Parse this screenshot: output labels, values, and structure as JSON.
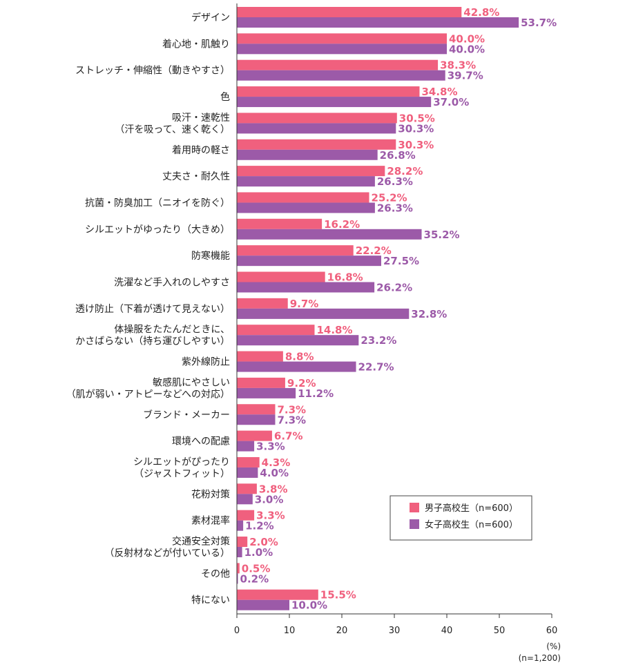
{
  "chart_data": {
    "type": "bar",
    "orientation": "horizontal",
    "categories": [
      [
        "デザイン"
      ],
      [
        "着心地・肌触り"
      ],
      [
        "ストレッチ・伸縮性（動きやすさ）"
      ],
      [
        "色"
      ],
      [
        "吸汗・速乾性",
        "（汗を吸って、速く乾く）"
      ],
      [
        "着用時の軽さ"
      ],
      [
        "丈夫さ・耐久性"
      ],
      [
        "抗菌・防臭加工（ニオイを防ぐ）"
      ],
      [
        "シルエットがゆったり（大きめ）"
      ],
      [
        "防寒機能"
      ],
      [
        "洗濯など手入れのしやすさ"
      ],
      [
        "透け防止（下着が透けて見えない）"
      ],
      [
        "体操服をたたんだときに、",
        "かさばらない（持ち運びしやすい）"
      ],
      [
        "紫外線防止"
      ],
      [
        "敏感肌にやさしい",
        "（肌が弱い・アトピーなどへの対応）"
      ],
      [
        "ブランド・メーカー"
      ],
      [
        "環境への配慮"
      ],
      [
        "シルエットがぴったり",
        "（ジャストフィット）"
      ],
      [
        "花粉対策"
      ],
      [
        "素材混率"
      ],
      [
        "交通安全対策",
        "（反射材などが付いている）"
      ],
      [
        "その他"
      ],
      [
        "特にない"
      ]
    ],
    "series": [
      {
        "name": "男子高校生（n=600）",
        "color": "#f0607e",
        "values": [
          42.8,
          40.0,
          38.3,
          34.8,
          30.5,
          30.3,
          28.2,
          25.2,
          16.2,
          22.2,
          16.8,
          9.7,
          14.8,
          8.8,
          9.2,
          7.3,
          6.7,
          4.3,
          3.8,
          3.3,
          2.0,
          0.5,
          15.5
        ]
      },
      {
        "name": "女子高校生（n=600）",
        "color": "#9c5aa8",
        "values": [
          53.7,
          40.0,
          39.7,
          37.0,
          30.3,
          26.8,
          26.3,
          26.3,
          35.2,
          27.5,
          26.2,
          32.8,
          23.2,
          22.7,
          11.2,
          7.3,
          3.3,
          4.0,
          3.0,
          1.2,
          1.0,
          0.2,
          10.0
        ]
      }
    ],
    "xlim": [
      0,
      60
    ],
    "xticks": [
      0,
      10,
      20,
      30,
      40,
      50,
      60
    ],
    "unit_label": "(%)",
    "sample_label": "(n=1,200)",
    "value_suffix": "%",
    "legend_position": "lower-right"
  }
}
